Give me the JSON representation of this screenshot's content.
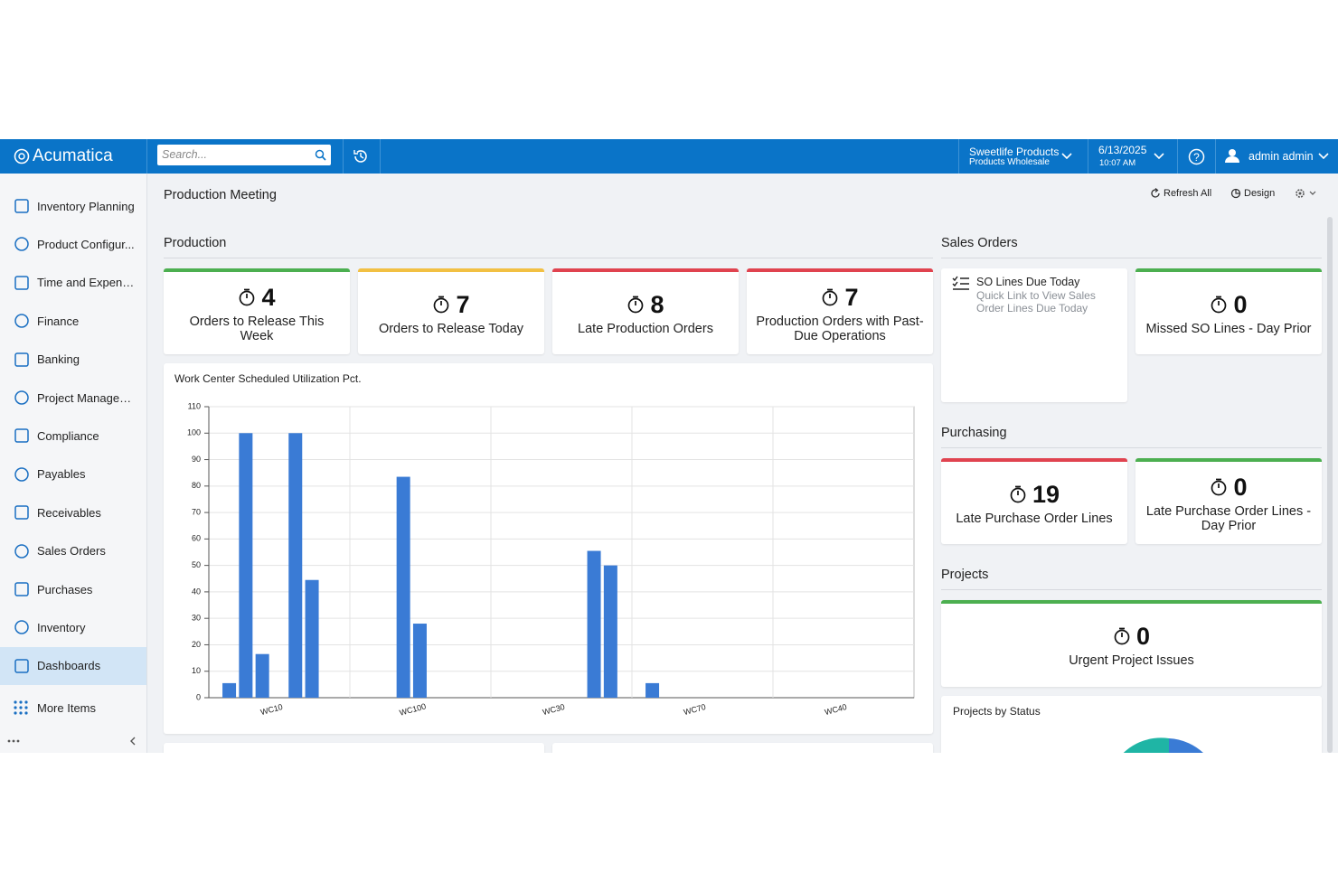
{
  "header": {
    "logo": "Acumatica",
    "search_placeholder": "Search...",
    "company": "Sweetlife Products",
    "branch": "Products Wholesale",
    "date": "6/13/2025",
    "time": "10:07 AM",
    "user": "admin admin"
  },
  "sidebar": {
    "items": [
      "Inventory Planning",
      "Product Configur...",
      "Time and Expenses",
      "Finance",
      "Banking",
      "Project Managem...",
      "Compliance",
      "Payables",
      "Receivables",
      "Sales Orders",
      "Purchases",
      "Inventory",
      "Dashboards"
    ],
    "active": 12,
    "more": "More Items"
  },
  "page": {
    "title": "Production Meeting",
    "refresh": "Refresh All",
    "design": "Design"
  },
  "production": {
    "title": "Production",
    "tiles": [
      {
        "value": 4,
        "label": "Orders to Release This Week",
        "color": "#4caf50"
      },
      {
        "value": 7,
        "label": "Orders to Release Today",
        "color": "#f2c043"
      },
      {
        "value": 8,
        "label": "Late Production Orders",
        "color": "#e0434f"
      },
      {
        "value": 7,
        "label": "Production Orders with Past-Due Operations",
        "color": "#e0434f"
      }
    ]
  },
  "chart_data": {
    "type": "bar",
    "title": "Work Center Scheduled Utilization Pct.",
    "categories": [
      "WC10",
      "WC100",
      "WC30",
      "WC70",
      "WC40"
    ],
    "series": [
      {
        "color": "#3a7bd5",
        "values": [
          5.5,
          null,
          null,
          5.5,
          null
        ]
      },
      {
        "color": "#3a7bd5",
        "values": [
          100,
          null,
          null,
          null,
          null
        ]
      },
      {
        "color": "#3a7bd5",
        "values": [
          16.5,
          83.5,
          null,
          null,
          null
        ]
      },
      {
        "color": "#3a7bd5",
        "values": [
          null,
          28,
          null,
          null,
          null
        ]
      },
      {
        "color": "#3a7bd5",
        "values": [
          100,
          null,
          null,
          null,
          null
        ]
      },
      {
        "color": "#3a7bd5",
        "values": [
          44.5,
          null,
          55.5,
          null,
          null
        ]
      },
      {
        "color": "#3a7bd5",
        "values": [
          null,
          null,
          50,
          null,
          null
        ]
      }
    ],
    "ylim": [
      0,
      110
    ],
    "yticks": [
      0,
      10,
      20,
      30,
      40,
      50,
      60,
      70,
      80,
      90,
      100,
      110
    ],
    "grid": true
  },
  "sales_orders": {
    "title": "Sales Orders",
    "link": {
      "title": "SO Lines Due Today",
      "description": "Quick Link to View Sales Order Lines Due Today"
    },
    "tiles": [
      {
        "value": 0,
        "label": "Missed SO Lines - Day Prior",
        "color": "#4caf50"
      }
    ]
  },
  "purchasing": {
    "title": "Purchasing",
    "tiles": [
      {
        "value": 19,
        "label": "Late Purchase Order Lines",
        "color": "#e0434f"
      },
      {
        "value": 0,
        "label": "Late Purchase Order Lines - Day Prior",
        "color": "#4caf50"
      }
    ]
  },
  "projects": {
    "title": "Projects",
    "tiles": [
      {
        "value": 0,
        "label": "Urgent Project Issues",
        "color": "#4caf50"
      }
    ],
    "status_chart_title": "Projects by Status"
  }
}
